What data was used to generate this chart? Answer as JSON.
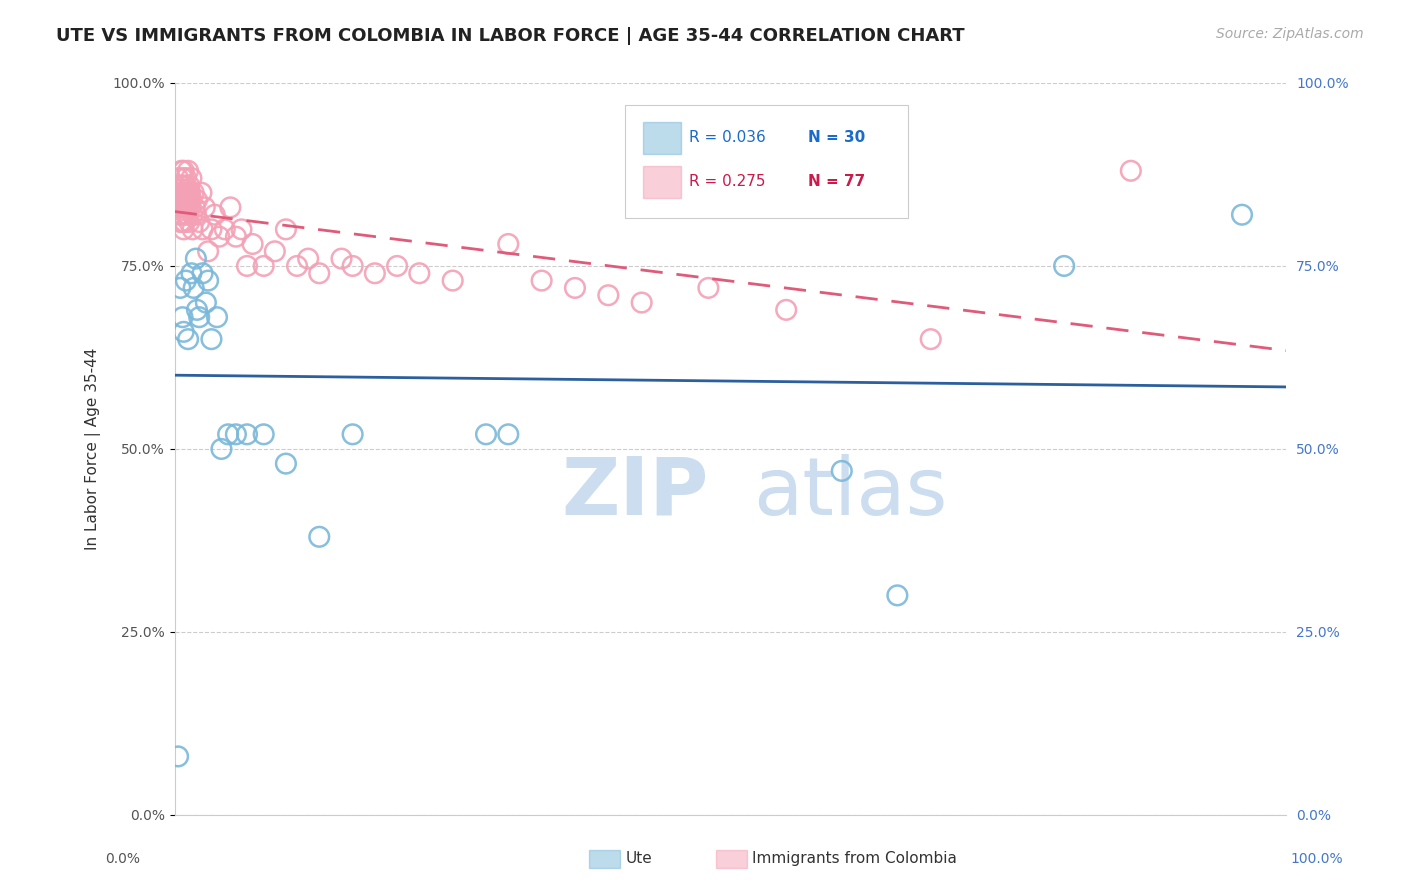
{
  "title": "UTE VS IMMIGRANTS FROM COLOMBIA IN LABOR FORCE | AGE 35-44 CORRELATION CHART",
  "source": "Source: ZipAtlas.com",
  "ylabel": "In Labor Force | Age 35-44",
  "ytick_labels": [
    "0.0%",
    "25.0%",
    "50.0%",
    "75.0%",
    "100.0%"
  ],
  "ytick_values": [
    0,
    0.25,
    0.5,
    0.75,
    1.0
  ],
  "xtick_labels": [
    "0.0%",
    "100.0%"
  ],
  "xtick_values": [
    0,
    1.0
  ],
  "legend_blue_r": "R = 0.036",
  "legend_blue_n": "N = 30",
  "legend_pink_r": "R = 0.275",
  "legend_pink_n": "N = 77",
  "legend_label_blue": "Ute",
  "legend_label_pink": "Immigrants from Colombia",
  "blue_color": "#7ab8d9",
  "pink_color": "#f4a0b5",
  "blue_line_color": "#2c5f9e",
  "pink_line_color": "#e05a7a",
  "blue_r_color": "#1a6bcc",
  "pink_r_color": "#cc1a4a",
  "title_fontsize": 13,
  "source_fontsize": 10,
  "axis_label_fontsize": 11,
  "tick_fontsize": 10,
  "background_color": "#ffffff",
  "watermark_color": "#ccddf0",
  "blue_x": [
    0.003,
    0.005,
    0.007,
    0.008,
    0.01,
    0.012,
    0.015,
    0.017,
    0.019,
    0.02,
    0.022,
    0.025,
    0.028,
    0.03,
    0.033,
    0.038,
    0.042,
    0.048,
    0.055,
    0.065,
    0.08,
    0.1,
    0.13,
    0.16,
    0.28,
    0.3,
    0.6,
    0.65,
    0.8,
    0.96
  ],
  "blue_y": [
    0.08,
    0.72,
    0.68,
    0.66,
    0.73,
    0.65,
    0.74,
    0.72,
    0.76,
    0.69,
    0.68,
    0.74,
    0.7,
    0.73,
    0.65,
    0.68,
    0.5,
    0.52,
    0.52,
    0.52,
    0.52,
    0.48,
    0.38,
    0.52,
    0.52,
    0.52,
    0.47,
    0.3,
    0.75,
    0.82
  ],
  "pink_x": [
    0.002,
    0.003,
    0.003,
    0.004,
    0.004,
    0.005,
    0.005,
    0.005,
    0.006,
    0.006,
    0.006,
    0.007,
    0.007,
    0.007,
    0.008,
    0.008,
    0.008,
    0.008,
    0.009,
    0.009,
    0.009,
    0.01,
    0.01,
    0.01,
    0.011,
    0.011,
    0.012,
    0.012,
    0.012,
    0.013,
    0.013,
    0.013,
    0.014,
    0.014,
    0.015,
    0.015,
    0.016,
    0.016,
    0.017,
    0.018,
    0.019,
    0.02,
    0.022,
    0.024,
    0.025,
    0.027,
    0.03,
    0.033,
    0.036,
    0.04,
    0.045,
    0.05,
    0.055,
    0.06,
    0.065,
    0.07,
    0.08,
    0.09,
    0.1,
    0.11,
    0.12,
    0.13,
    0.15,
    0.16,
    0.18,
    0.2,
    0.22,
    0.25,
    0.3,
    0.33,
    0.36,
    0.39,
    0.42,
    0.48,
    0.55,
    0.68,
    0.86
  ],
  "pink_y": [
    0.84,
    0.87,
    0.83,
    0.85,
    0.82,
    0.86,
    0.84,
    0.81,
    0.88,
    0.85,
    0.82,
    0.87,
    0.84,
    0.81,
    0.88,
    0.85,
    0.83,
    0.8,
    0.86,
    0.83,
    0.81,
    0.87,
    0.84,
    0.82,
    0.85,
    0.83,
    0.88,
    0.85,
    0.82,
    0.86,
    0.84,
    0.81,
    0.85,
    0.83,
    0.87,
    0.84,
    0.82,
    0.8,
    0.85,
    0.83,
    0.82,
    0.84,
    0.81,
    0.85,
    0.8,
    0.83,
    0.77,
    0.8,
    0.82,
    0.79,
    0.8,
    0.83,
    0.79,
    0.8,
    0.75,
    0.78,
    0.75,
    0.77,
    0.8,
    0.75,
    0.76,
    0.74,
    0.76,
    0.75,
    0.74,
    0.75,
    0.74,
    0.73,
    0.78,
    0.73,
    0.72,
    0.71,
    0.7,
    0.72,
    0.69,
    0.65,
    0.88
  ]
}
